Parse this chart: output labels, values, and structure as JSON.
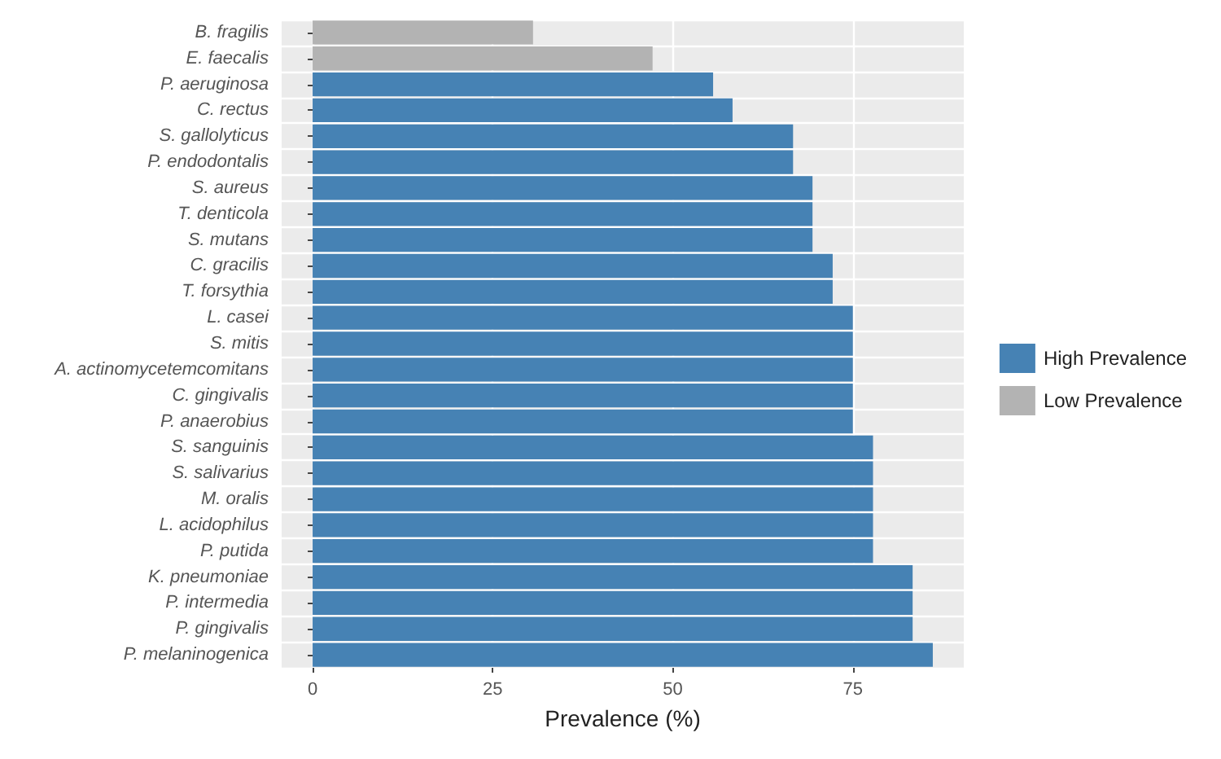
{
  "chart_data": {
    "type": "bar",
    "orientation": "horizontal",
    "stacked": true,
    "xlabel": "Prevalence (%)",
    "categories": [
      "B. fragilis",
      "E. faecalis",
      "P. aeruginosa",
      "C. rectus",
      "S. gallolyticus",
      "P. endodontalis",
      "S. aureus",
      "T. denticola",
      "S. mutans",
      "C. gracilis",
      "T. forsythia",
      "L. casei",
      "S. mitis",
      "A. actinomycetemcomitans",
      "C. gingivalis",
      "P. anaerobius",
      "S. sanguinis",
      "S. salivarius",
      "M. oralis",
      "L. acidophilus",
      "P. putida",
      "K. pneumoniae",
      "P. intermedia",
      "P. gingivalis",
      "P. melaninogenica"
    ],
    "series": [
      {
        "name": "High Prevalence",
        "color": "#4682b4",
        "values": [
          null,
          null,
          55.6,
          58.3,
          66.7,
          66.7,
          69.4,
          69.4,
          69.4,
          72.2,
          72.2,
          75,
          75,
          75,
          75,
          75,
          77.8,
          77.8,
          77.8,
          77.8,
          77.8,
          83.3,
          83.3,
          83.3,
          86.1
        ]
      },
      {
        "name": "Low Prevalence",
        "color": "#b3b3b3",
        "values": [
          30.6,
          47.2,
          null,
          null,
          null,
          null,
          null,
          null,
          null,
          null,
          null,
          null,
          null,
          null,
          null,
          null,
          null,
          null,
          null,
          null,
          null,
          null,
          null,
          null,
          null
        ]
      }
    ],
    "xlim": [
      -4.3,
      90.4
    ],
    "xticks": [
      0,
      25,
      50,
      75
    ],
    "grid": true,
    "legend": "right"
  }
}
